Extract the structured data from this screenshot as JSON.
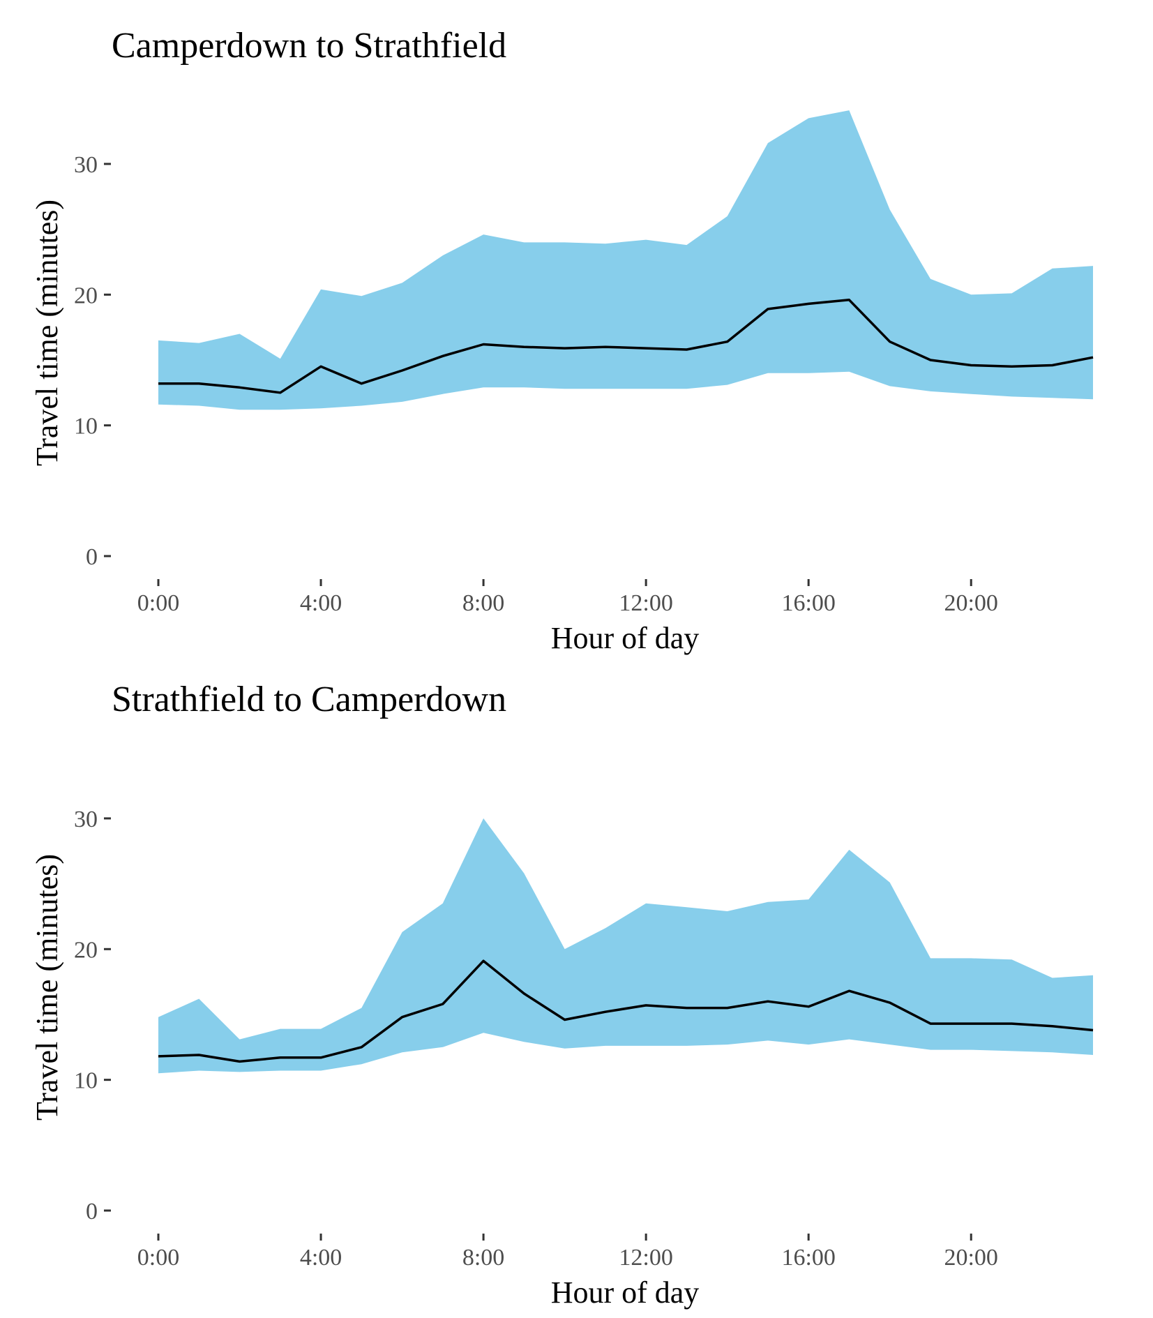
{
  "colors": {
    "band": "#87CEEB",
    "line": "#000000",
    "tick_text": "#4d4d4d"
  },
  "chart_data": [
    {
      "type": "area",
      "title": "Camperdown to Strathfield",
      "xlabel": "Hour of day",
      "ylabel": "Travel time (minutes)",
      "xlim": [
        0,
        23
      ],
      "ylim": [
        0,
        34
      ],
      "grid": false,
      "x": [
        0,
        1,
        2,
        3,
        4,
        5,
        6,
        7,
        8,
        9,
        10,
        11,
        12,
        13,
        14,
        15,
        16,
        17,
        18,
        19,
        20,
        21,
        22,
        23
      ],
      "x_ticks": [
        0,
        4,
        8,
        12,
        16,
        20
      ],
      "x_tick_labels": [
        "0:00",
        "4:00",
        "8:00",
        "12:00",
        "16:00",
        "20:00"
      ],
      "y_ticks": [
        0,
        10,
        20,
        30
      ],
      "y_tick_labels": [
        "0",
        "10",
        "20",
        "30"
      ],
      "series": [
        {
          "role": "band",
          "color": "#87CEEB",
          "lower": [
            11.6,
            11.5,
            11.2,
            11.2,
            11.3,
            11.5,
            11.8,
            12.4,
            12.9,
            12.9,
            12.8,
            12.8,
            12.8,
            12.8,
            13.1,
            14.0,
            14.0,
            14.1,
            13.0,
            12.6,
            12.4,
            12.2,
            12.1,
            12.0
          ],
          "upper": [
            16.5,
            16.3,
            17.0,
            15.1,
            20.4,
            19.9,
            20.9,
            23.0,
            24.6,
            24.0,
            24.0,
            23.9,
            24.2,
            23.8,
            26.0,
            31.6,
            33.5,
            34.1,
            26.5,
            21.2,
            20.0,
            20.1,
            22.0,
            22.2
          ]
        },
        {
          "role": "line",
          "color": "#000000",
          "values": [
            13.2,
            13.2,
            12.9,
            12.5,
            14.5,
            13.2,
            14.2,
            15.3,
            16.2,
            16.0,
            15.9,
            16.0,
            15.9,
            15.8,
            16.4,
            18.9,
            19.3,
            19.6,
            16.4,
            15.0,
            14.6,
            14.5,
            14.6,
            15.2
          ]
        }
      ]
    },
    {
      "type": "area",
      "title": "Strathfield to Camperdown",
      "xlabel": "Hour of day",
      "ylabel": "Travel time (minutes)",
      "xlim": [
        0,
        23
      ],
      "ylim": [
        0,
        34
      ],
      "grid": false,
      "x": [
        0,
        1,
        2,
        3,
        4,
        5,
        6,
        7,
        8,
        9,
        10,
        11,
        12,
        13,
        14,
        15,
        16,
        17,
        18,
        19,
        20,
        21,
        22,
        23
      ],
      "x_ticks": [
        0,
        4,
        8,
        12,
        16,
        20
      ],
      "x_tick_labels": [
        "0:00",
        "4:00",
        "8:00",
        "12:00",
        "16:00",
        "20:00"
      ],
      "y_ticks": [
        0,
        10,
        20,
        30
      ],
      "y_tick_labels": [
        "0",
        "10",
        "20",
        "30"
      ],
      "series": [
        {
          "role": "band",
          "color": "#87CEEB",
          "lower": [
            10.5,
            10.7,
            10.6,
            10.7,
            10.7,
            11.2,
            12.1,
            12.5,
            13.6,
            12.9,
            12.4,
            12.6,
            12.6,
            12.6,
            12.7,
            13.0,
            12.7,
            13.1,
            12.7,
            12.3,
            12.3,
            12.2,
            12.1,
            11.9
          ],
          "upper": [
            14.8,
            16.2,
            13.1,
            13.9,
            13.9,
            15.5,
            21.3,
            23.5,
            30.0,
            25.8,
            20.0,
            21.6,
            23.5,
            23.2,
            22.9,
            23.6,
            23.8,
            27.6,
            25.1,
            19.3,
            19.3,
            19.2,
            17.8,
            18.0
          ]
        },
        {
          "role": "line",
          "color": "#000000",
          "values": [
            11.8,
            11.9,
            11.4,
            11.7,
            11.7,
            12.5,
            14.8,
            15.8,
            19.1,
            16.6,
            14.6,
            15.2,
            15.7,
            15.5,
            15.5,
            16.0,
            15.6,
            16.8,
            15.9,
            14.3,
            14.3,
            14.3,
            14.1,
            13.8
          ]
        }
      ]
    }
  ]
}
